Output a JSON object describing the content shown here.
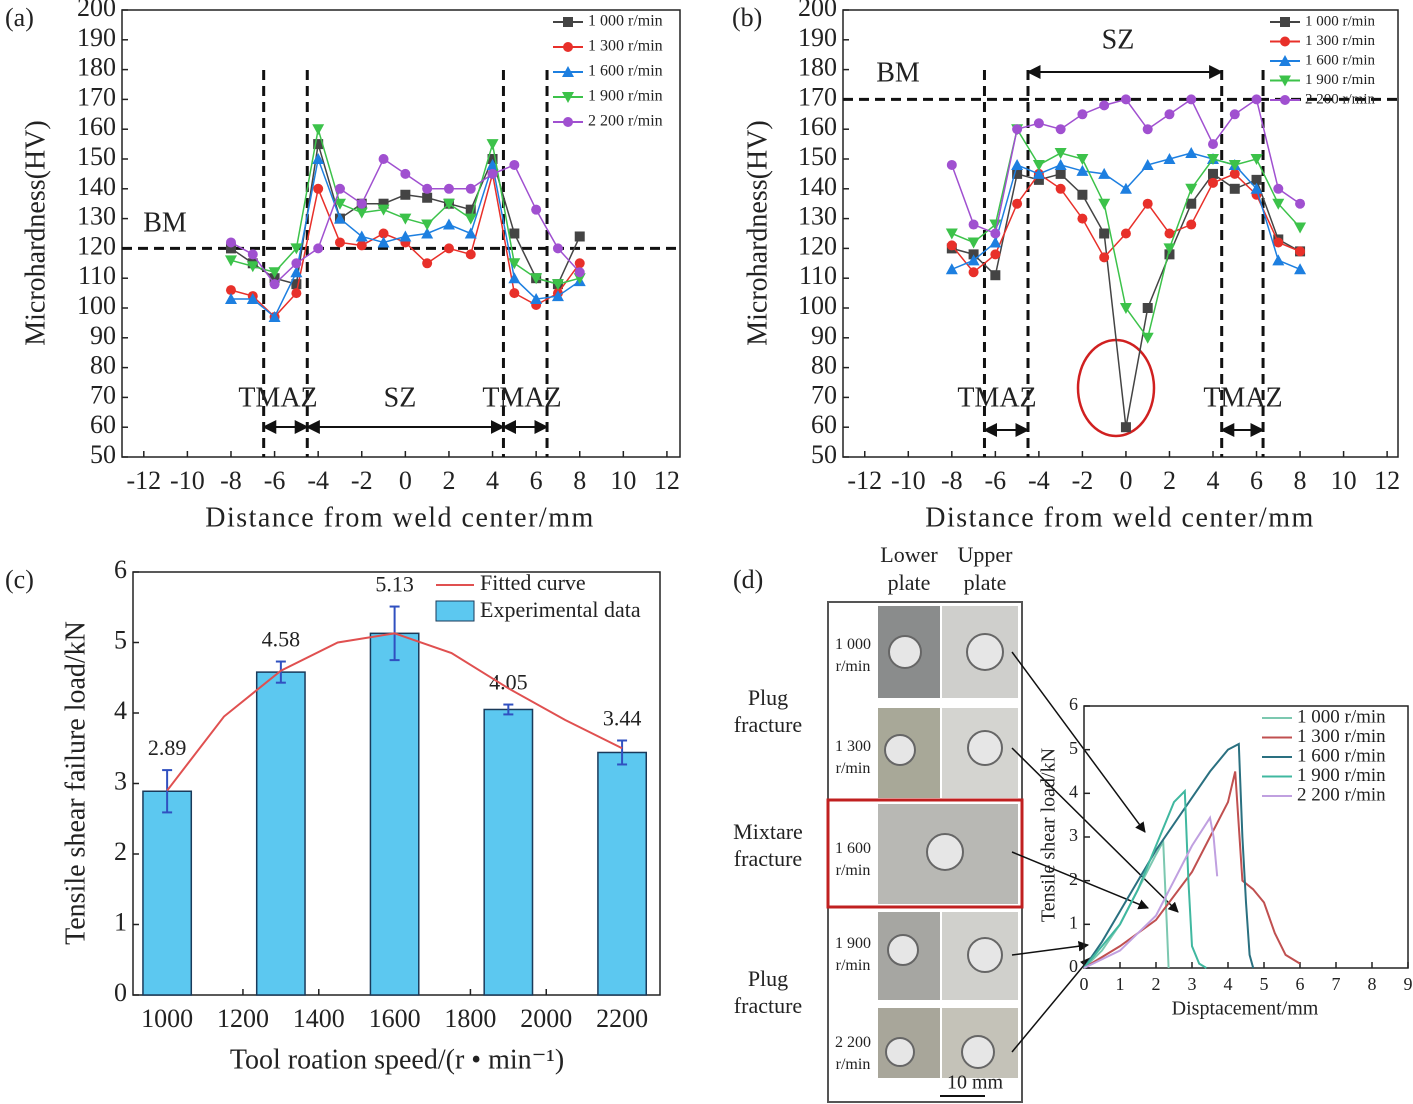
{
  "chart_data": [
    {
      "type": "line",
      "panel_label": "(a)",
      "x_label": "Distance from weld center/mm",
      "y_label": "Microhardness(HV)",
      "x": [
        -8,
        -7,
        -6,
        -5,
        -4,
        -3,
        -2,
        -1,
        0,
        1,
        2,
        3,
        4,
        5,
        6,
        7,
        8
      ],
      "series": [
        {
          "name": "1 000 r/min",
          "color": "#444444",
          "marker": "square",
          "values": [
            120,
            115,
            110,
            108,
            155,
            130,
            135,
            135,
            138,
            137,
            135,
            133,
            150,
            125,
            110,
            108,
            124
          ]
        },
        {
          "name": "1 300 r/min",
          "color": "#e8302a",
          "marker": "circle",
          "values": [
            106,
            104,
            97,
            105,
            140,
            122,
            121,
            125,
            122,
            115,
            120,
            118,
            145,
            105,
            101,
            105,
            115
          ]
        },
        {
          "name": "1 600 r/min",
          "color": "#1d7fe0",
          "marker": "triangle",
          "values": [
            103,
            103,
            97,
            112,
            150,
            130,
            124,
            122,
            124,
            125,
            128,
            125,
            148,
            110,
            103,
            104,
            109
          ]
        },
        {
          "name": "1 900 r/min",
          "color": "#3cc24a",
          "marker": "triangle-down",
          "values": [
            116,
            114,
            112,
            120,
            160,
            135,
            132,
            133,
            130,
            128,
            135,
            130,
            155,
            115,
            110,
            108,
            110
          ]
        },
        {
          "name": "2 200 r/min",
          "color": "#a050d0",
          "marker": "circle",
          "values": [
            122,
            118,
            108,
            115,
            120,
            140,
            135,
            150,
            145,
            140,
            140,
            140,
            145,
            148,
            133,
            120,
            112
          ]
        }
      ],
      "xlim": [
        -13,
        12.6
      ],
      "ylim": [
        50,
        200
      ],
      "xticks": [
        -12,
        -10,
        -8,
        -6,
        -4,
        -2,
        0,
        2,
        4,
        6,
        8,
        10,
        12
      ],
      "yticks": [
        50,
        60,
        70,
        80,
        90,
        100,
        110,
        120,
        130,
        140,
        150,
        160,
        170,
        180,
        190,
        200
      ],
      "reference_lines": {
        "y": [
          120
        ],
        "x": [
          -6.5,
          -4.5,
          4.5,
          6.5
        ]
      },
      "annotations": [
        "BM",
        "TMAZ",
        "SZ",
        "TMAZ"
      ]
    },
    {
      "type": "line",
      "panel_label": "(b)",
      "x_label": "Distance from weld center/mm",
      "y_label": "Microhardness(HV)",
      "x": [
        -8,
        -7,
        -6,
        -5,
        -4,
        -3,
        -2,
        -1,
        0,
        1,
        2,
        3,
        4,
        5,
        6,
        7,
        8
      ],
      "series": [
        {
          "name": "1 000 r/min",
          "color": "#444444",
          "marker": "square",
          "values": [
            120,
            118,
            111,
            145,
            143,
            145,
            138,
            125,
            60,
            100,
            118,
            135,
            145,
            140,
            143,
            123,
            119
          ]
        },
        {
          "name": "1 300 r/min",
          "color": "#e8302a",
          "marker": "circle",
          "values": [
            121,
            112,
            118,
            135,
            145,
            140,
            130,
            117,
            125,
            135,
            125,
            128,
            142,
            145,
            138,
            122,
            119
          ]
        },
        {
          "name": "1 600 r/min",
          "color": "#1d7fe0",
          "marker": "triangle",
          "values": [
            113,
            116,
            122,
            148,
            145,
            148,
            146,
            145,
            140,
            148,
            150,
            152,
            150,
            148,
            140,
            116,
            113
          ]
        },
        {
          "name": "1 900 r/min",
          "color": "#3cc24a",
          "marker": "triangle-down",
          "values": [
            125,
            122,
            128,
            160,
            148,
            152,
            150,
            135,
            100,
            90,
            120,
            140,
            150,
            148,
            150,
            135,
            127
          ]
        },
        {
          "name": "2 200 r/min",
          "color": "#a050d0",
          "marker": "circle",
          "values": [
            148,
            128,
            125,
            160,
            162,
            160,
            165,
            168,
            170,
            160,
            165,
            170,
            155,
            165,
            170,
            140,
            135
          ]
        }
      ],
      "xlim": [
        -13,
        12.5
      ],
      "ylim": [
        50,
        200
      ],
      "xticks": [
        -12,
        -10,
        -8,
        -6,
        -4,
        -2,
        0,
        2,
        4,
        6,
        8,
        10,
        12
      ],
      "yticks": [
        50,
        60,
        70,
        80,
        90,
        100,
        110,
        120,
        130,
        140,
        150,
        160,
        170,
        180,
        190,
        200
      ],
      "reference_lines": {
        "y": [
          170
        ],
        "x": [
          -6.5,
          -4.5,
          4.4,
          6.3
        ]
      },
      "annotations": [
        "BM",
        "SZ",
        "TMAZ",
        "TMAZ"
      ]
    },
    {
      "type": "bar",
      "panel_label": "(c)",
      "x_label": "Tool roation speed/(r • min⁻¹)",
      "y_label": "Tensile shear failure load/kN",
      "bar_label": "Experimental data",
      "color": "#5cc8f0",
      "x": [
        1000,
        1300,
        1600,
        1900,
        2200
      ],
      "values": [
        2.89,
        4.58,
        5.13,
        4.05,
        3.44
      ],
      "errors": [
        0.3,
        0.15,
        0.38,
        0.07,
        0.17
      ],
      "fit": {
        "name": "Fitted curve",
        "color": "#e05050",
        "x": [
          1000,
          1150,
          1300,
          1450,
          1600,
          1750,
          1900,
          2050,
          2200
        ],
        "values": [
          2.9,
          3.95,
          4.6,
          5.0,
          5.13,
          4.85,
          4.35,
          3.9,
          3.5
        ]
      },
      "xlim": [
        910,
        2300
      ],
      "ylim": [
        0,
        6
      ],
      "xticks": [
        1000,
        1200,
        1400,
        1600,
        1800,
        2000,
        2200
      ],
      "yticks": [
        0,
        1,
        2,
        3,
        4,
        5,
        6
      ]
    },
    {
      "type": "line",
      "panel_label": "(d)",
      "x_label": "Disptacement/mm",
      "y_label": "Tensile shear load/kN",
      "column_headers": [
        "Lower plate",
        "Upper plate"
      ],
      "row_labels": [
        "1 000 r/min",
        "1 300 r/min",
        "1 600 r/min",
        "1 900 r/min",
        "2 200 r/min"
      ],
      "fracture_labels": [
        "Plug fracture",
        "Mixtare fracture",
        "Plug fracture"
      ],
      "scale_bar": "10 mm",
      "series": [
        {
          "name": "1 000 r/min",
          "color": "#7cc8b0",
          "x": [
            0,
            0.5,
            1,
            1.5,
            2,
            2.2,
            2.3,
            2.35
          ],
          "values": [
            0,
            0.4,
            1,
            1.8,
            2.6,
            2.9,
            1,
            0
          ]
        },
        {
          "name": "1 300 r/min",
          "color": "#c05050",
          "x": [
            0,
            1,
            2,
            3,
            3.5,
            4,
            4.2,
            4.4,
            4.7,
            5,
            5.3,
            5.6,
            6
          ],
          "values": [
            0,
            0.5,
            1.1,
            2.2,
            3,
            3.8,
            4.5,
            2,
            1.8,
            1.5,
            0.8,
            0.3,
            0.1
          ]
        },
        {
          "name": "1 600 r/min",
          "color": "#2a7080",
          "x": [
            0,
            0.5,
            1,
            2,
            3,
            3.5,
            4,
            4.3,
            4.4,
            4.5,
            4.6,
            4.7
          ],
          "values": [
            0,
            0.6,
            1.3,
            2.7,
            3.9,
            4.5,
            5,
            5.13,
            3,
            1.5,
            0.3,
            0
          ]
        },
        {
          "name": "1 900 r/min",
          "color": "#40b8a0",
          "x": [
            0,
            0.5,
            1,
            1.5,
            2,
            2.5,
            2.8,
            2.9,
            3,
            3.2,
            3.4
          ],
          "values": [
            0,
            0.5,
            1,
            1.8,
            2.8,
            3.8,
            4.05,
            2,
            0.5,
            0.1,
            0
          ]
        },
        {
          "name": "2 200 r/min",
          "color": "#c0a0e0",
          "x": [
            0,
            1,
            2,
            2.5,
            3,
            3.5,
            3.6,
            3.7
          ],
          "values": [
            0,
            0.4,
            1.2,
            2,
            2.8,
            3.44,
            3,
            2.1
          ]
        }
      ],
      "xlim": [
        0,
        9
      ],
      "ylim": [
        0,
        6
      ],
      "xticks": [
        0,
        1,
        2,
        3,
        4,
        5,
        6,
        7,
        8,
        9
      ],
      "yticks": [
        0,
        1,
        2,
        3,
        4,
        5,
        6
      ]
    }
  ]
}
